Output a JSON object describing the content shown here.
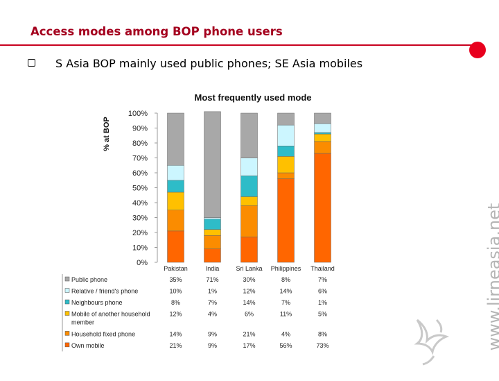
{
  "slide": {
    "title": "Access modes among BOP phone users",
    "bullet": "S Asia BOP mainly used public phones; SE Asia mobiles",
    "watermark": "www.lirneasia.net"
  },
  "colors": {
    "title": "#a4001e",
    "accent": "#e8001e"
  },
  "chart_data": {
    "type": "bar",
    "stacked": true,
    "title": "Most frequently used mode",
    "ylabel": "% at BOP",
    "ylim": [
      0,
      100
    ],
    "yticks": [
      "0%",
      "10%",
      "20%",
      "30%",
      "40%",
      "50%",
      "60%",
      "70%",
      "80%",
      "90%",
      "100%"
    ],
    "categories": [
      "Pakistan",
      "India",
      "Sri Lanka",
      "Philippines",
      "Thailand"
    ],
    "series": [
      {
        "name": "Own mobile",
        "color": "#ff6600",
        "values": [
          21,
          9,
          17,
          56,
          73
        ],
        "labels": [
          "21%",
          "9%",
          "17%",
          "56%",
          "73%"
        ]
      },
      {
        "name": "Household fixed phone",
        "color": "#fb8c00",
        "values": [
          14,
          9,
          21,
          4,
          8
        ],
        "labels": [
          "14%",
          "9%",
          "21%",
          "4%",
          "8%"
        ]
      },
      {
        "name": "Mobile of another household member",
        "color": "#ffc000",
        "values": [
          12,
          4,
          6,
          11,
          5
        ],
        "labels": [
          "12%",
          "4%",
          "6%",
          "11%",
          "5%"
        ]
      },
      {
        "name": "Neighbours phone",
        "color": "#2ebcc8",
        "values": [
          8,
          7,
          14,
          7,
          1
        ],
        "labels": [
          "8%",
          "7%",
          "14%",
          "7%",
          "1%"
        ]
      },
      {
        "name": "Relative / friend's phone",
        "color": "#ccf6ff",
        "values": [
          10,
          1,
          12,
          14,
          6
        ],
        "labels": [
          "10%",
          "1%",
          "12%",
          "14%",
          "6%"
        ]
      },
      {
        "name": "Public phone",
        "color": "#a8a8a8",
        "values": [
          35,
          71,
          30,
          8,
          7
        ],
        "labels": [
          "35%",
          "71%",
          "30%",
          "8%",
          "7%"
        ]
      }
    ],
    "table_rows": [
      {
        "name": "Public phone",
        "labels": [
          "35%",
          "71%",
          "30%",
          "8%",
          "7%"
        ]
      },
      {
        "name": "Relative / friend's phone",
        "labels": [
          "10%",
          "1%",
          "12%",
          "14%",
          "6%"
        ]
      },
      {
        "name": "Neighbours phone",
        "labels": [
          "8%",
          "7%",
          "14%",
          "7%",
          "1%"
        ]
      },
      {
        "name": "Mobile of another household member",
        "labels": [
          "12%",
          "4%",
          "6%",
          "11%",
          "5%"
        ]
      },
      {
        "name": "Household fixed phone",
        "labels": [
          "14%",
          "9%",
          "21%",
          "4%",
          "8%"
        ]
      },
      {
        "name": "Own mobile",
        "labels": [
          "21%",
          "9%",
          "17%",
          "56%",
          "73%"
        ]
      }
    ],
    "legend": "data-table",
    "grid": false
  }
}
